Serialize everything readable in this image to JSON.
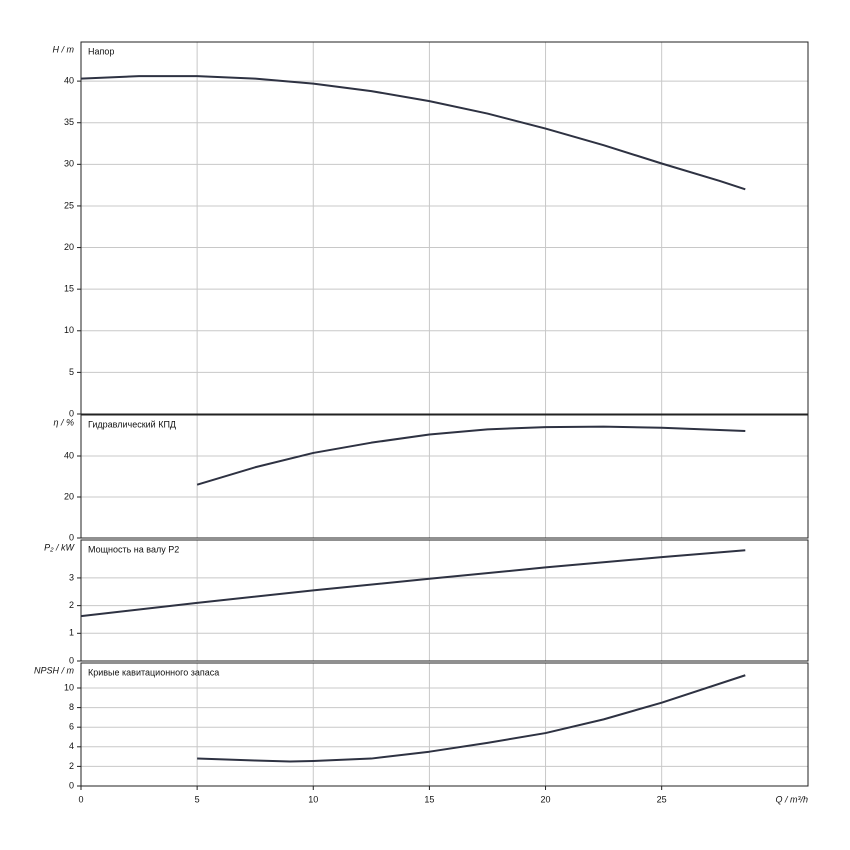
{
  "chart_data": [
    {
      "type": "line",
      "title": "Напор",
      "y_label": "H / m",
      "color": "#2e3242",
      "x": [
        0,
        2.5,
        5,
        7.5,
        10,
        12.5,
        15,
        17.5,
        20,
        22.5,
        25,
        27.5,
        28.6
      ],
      "values": [
        40.3,
        40.6,
        40.6,
        40.3,
        39.7,
        38.8,
        37.6,
        36.1,
        34.3,
        32.3,
        30.1,
        28.0,
        27.0
      ],
      "ylim": [
        0,
        44.7
      ],
      "yticks": [
        0,
        5,
        10,
        15,
        20,
        25,
        30,
        35,
        40
      ],
      "grid": true
    },
    {
      "type": "line",
      "title": "Гидравлический КПД",
      "y_label": "η / %",
      "color": "#2e3242",
      "x": [
        5,
        7.5,
        10,
        12.5,
        15,
        17.5,
        20,
        22.5,
        25,
        28.6
      ],
      "values": [
        26,
        34.5,
        41.5,
        46.5,
        50.5,
        53,
        54.1,
        54.3,
        53.8,
        52.2
      ],
      "ylim": [
        0,
        60
      ],
      "yticks": [
        0,
        20,
        40
      ],
      "grid": true
    },
    {
      "type": "line",
      "title": "Мощность на валу P2",
      "y_label": "P₂ / kW",
      "color": "#2e3242",
      "x": [
        0,
        5,
        10,
        15,
        20,
        25,
        28.6
      ],
      "values": [
        1.62,
        2.1,
        2.55,
        2.97,
        3.38,
        3.75,
        4.0
      ],
      "ylim": [
        0,
        4.37
      ],
      "yticks": [
        0,
        1,
        2,
        3
      ],
      "grid": true
    },
    {
      "type": "line",
      "title": "Кривые кавитационного запаса",
      "y_label": "NPSH / m",
      "color": "#2e3242",
      "x": [
        5,
        7.5,
        9,
        10,
        12.5,
        15,
        17.5,
        20,
        22.5,
        25,
        28.6
      ],
      "values": [
        2.8,
        2.6,
        2.5,
        2.55,
        2.8,
        3.5,
        4.4,
        5.4,
        6.8,
        8.5,
        11.3
      ],
      "ylim": [
        0,
        12.55
      ],
      "yticks": [
        0,
        2,
        4,
        6,
        8,
        10
      ],
      "grid": true,
      "x_label": "Q / m³/h",
      "xlim": [
        0,
        31.3
      ],
      "xticks": [
        0,
        5,
        10,
        15,
        20,
        25
      ]
    }
  ]
}
